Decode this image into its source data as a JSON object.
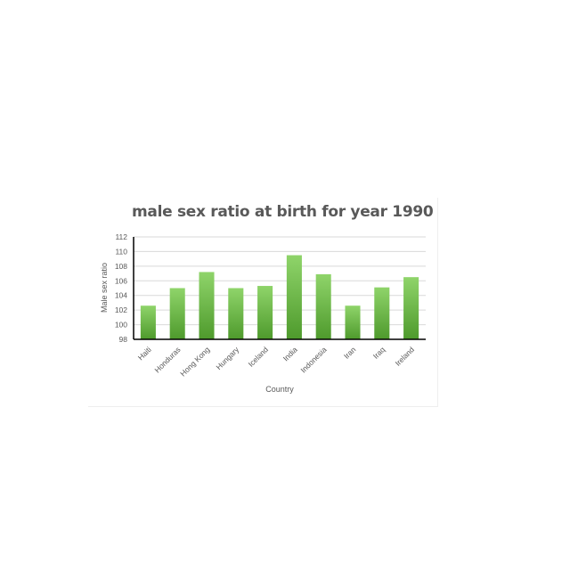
{
  "chart_data": {
    "type": "bar",
    "title": "male sex ratio at birth for year 1990",
    "xlabel": "Country",
    "ylabel": "Male sex ratio",
    "categories": [
      "Haiti",
      "Honduras",
      "Hong Kong",
      "Hungary",
      "Iceland",
      "India",
      "Indonesia",
      "Iran",
      "Iraq",
      "Ireland"
    ],
    "values": [
      102.6,
      105.0,
      107.2,
      105.0,
      105.3,
      109.5,
      106.9,
      102.6,
      105.1,
      106.5
    ],
    "ylim": [
      98,
      112
    ],
    "yticks": [
      98,
      100,
      102,
      104,
      106,
      108,
      110,
      112
    ],
    "grid": true,
    "legend": "none",
    "colors": {
      "bar_top": "#8fd46a",
      "bar_bottom": "#4e9a2c",
      "grid": "#d9d9d9",
      "axis": "#000000"
    }
  }
}
